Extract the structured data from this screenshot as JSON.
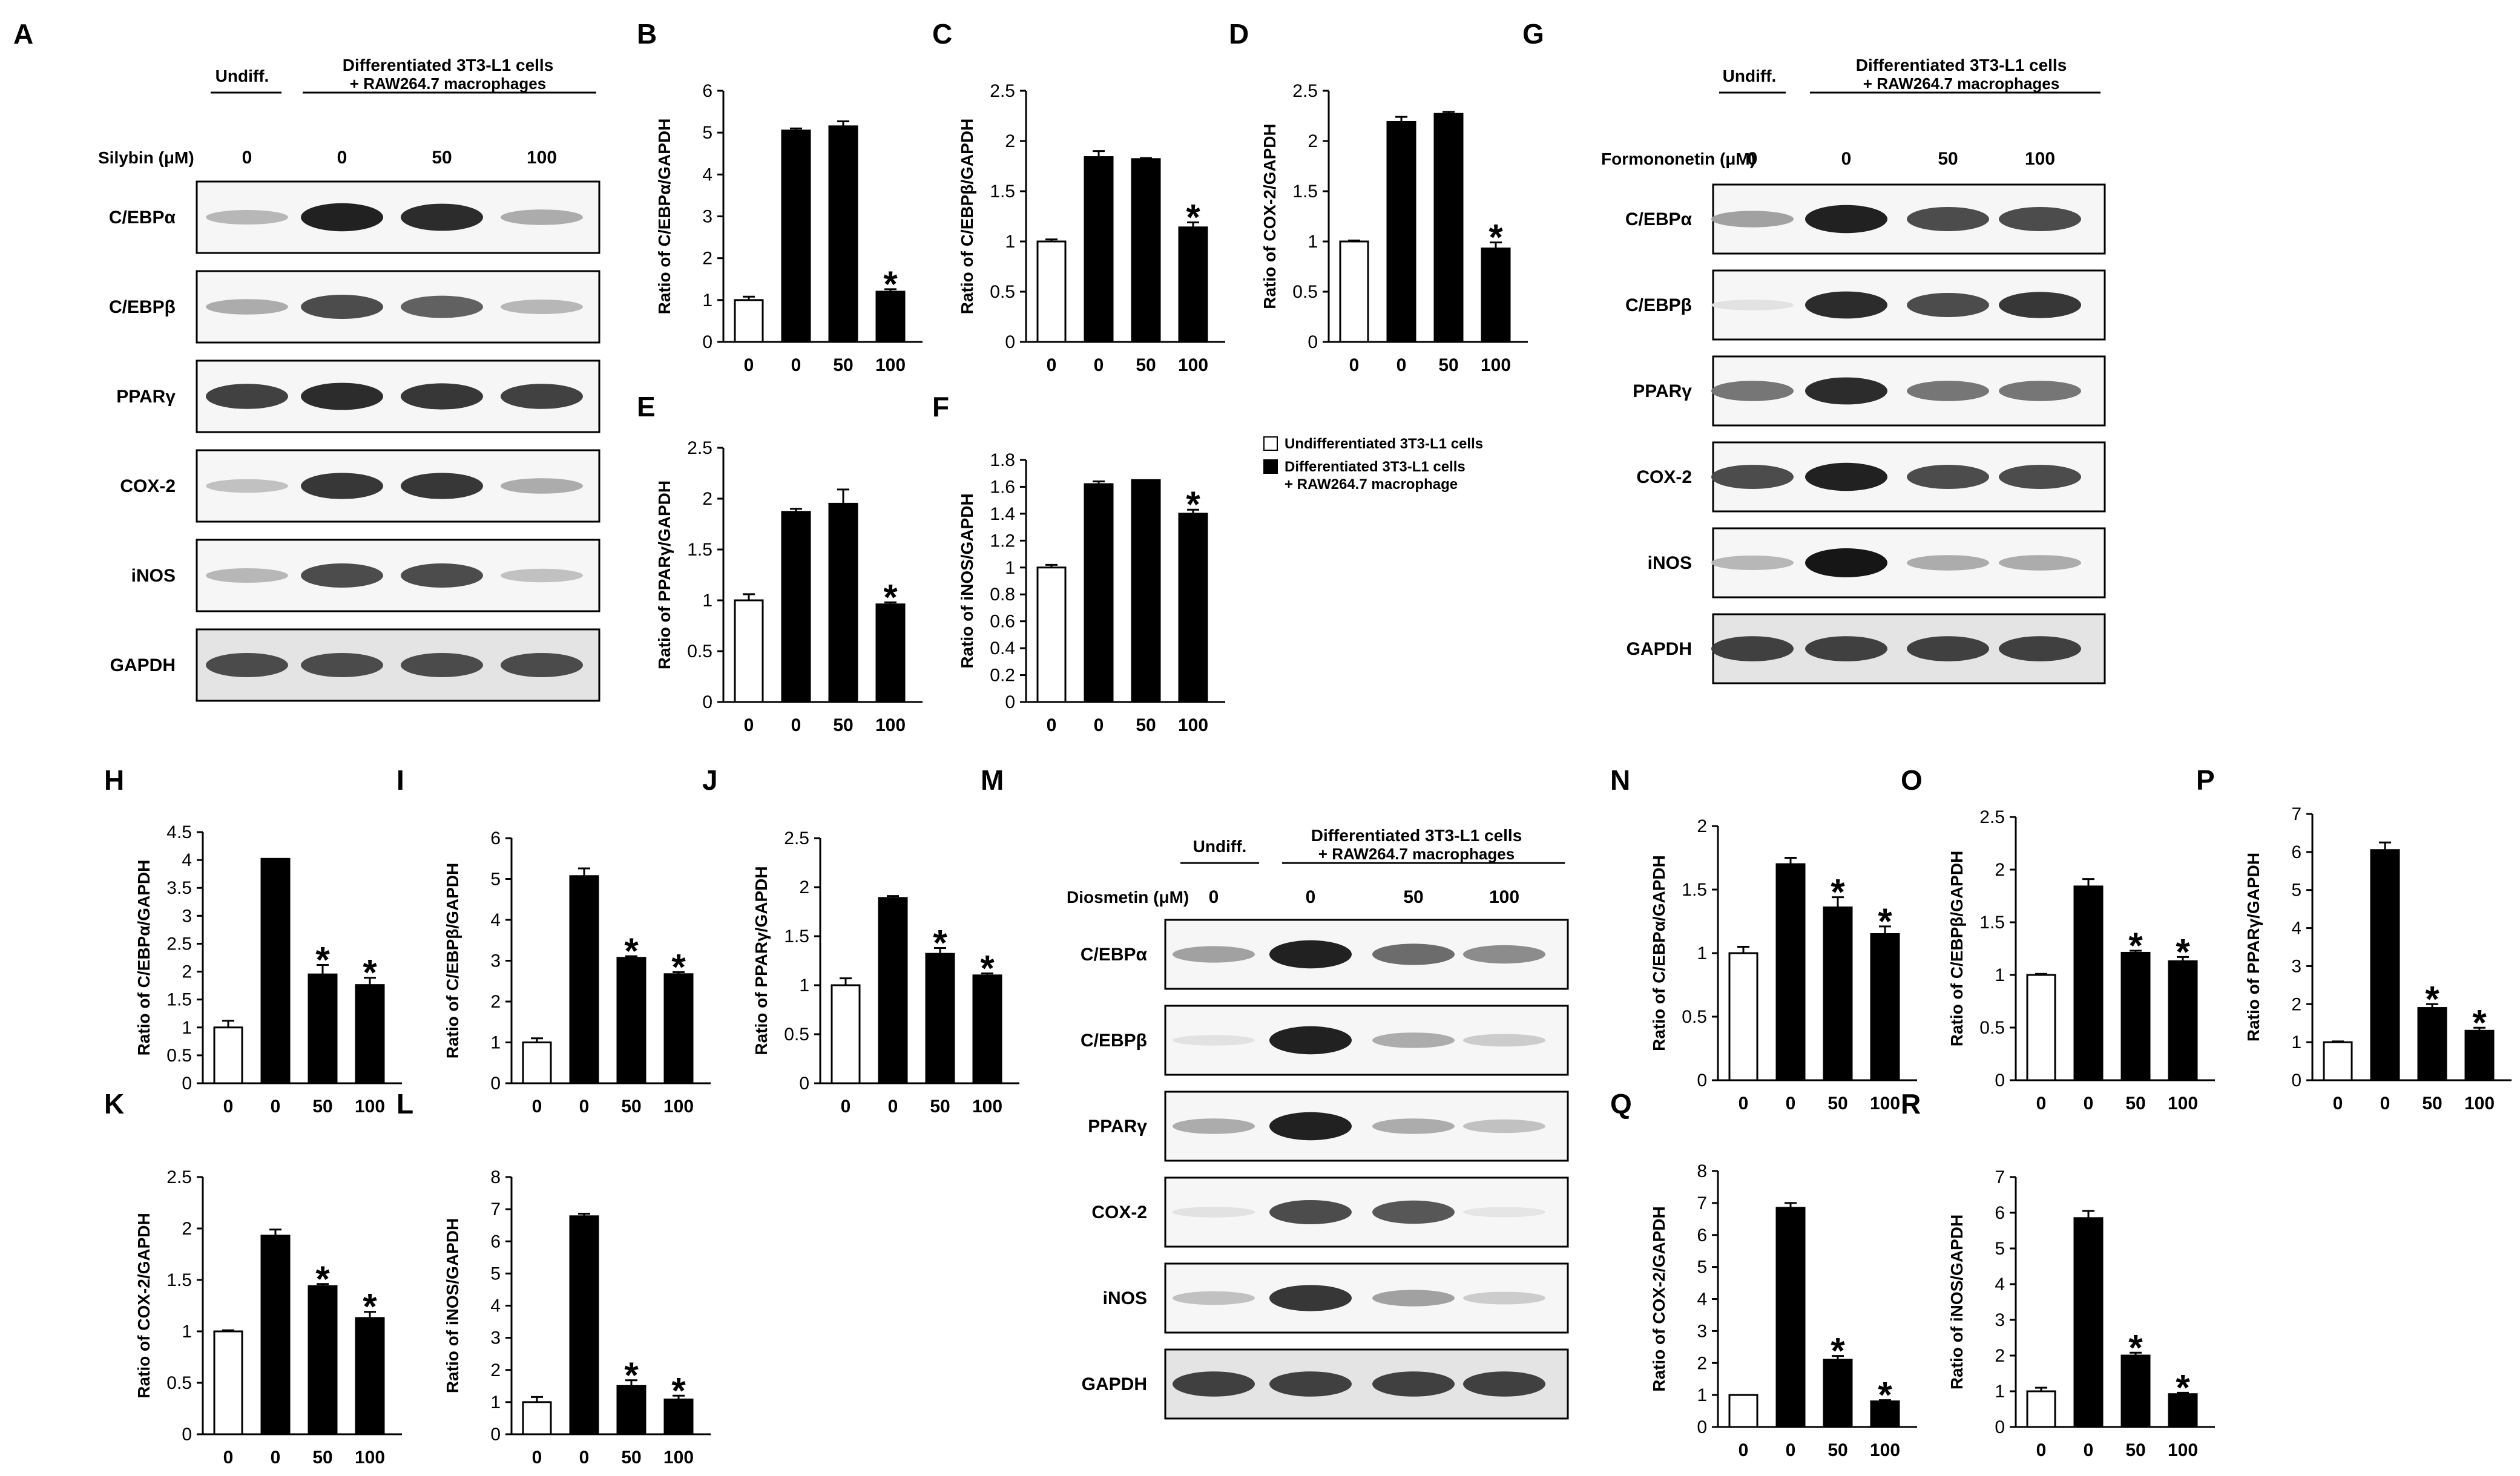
{
  "figure": {
    "blot_header": {
      "undiff_label": "Undiff.",
      "diff_label_line1": "Differentiated 3T3-L1 cells",
      "diff_label_line2": "+ RAW264.7 macrophages"
    },
    "blots": [
      {
        "panel": "A",
        "treatment_label": "Silybin (μM)",
        "doses": [
          "0",
          "0",
          "50",
          "100"
        ],
        "proteins": [
          "C/EBPα",
          "C/EBPβ",
          "PPARγ",
          "COX-2",
          "iNOS",
          "GAPDH"
        ],
        "band_intensity": [
          [
            0.25,
            0.95,
            0.9,
            0.3
          ],
          [
            0.3,
            0.75,
            0.65,
            0.25
          ],
          [
            0.8,
            0.9,
            0.85,
            0.8
          ],
          [
            0.2,
            0.85,
            0.85,
            0.3
          ],
          [
            0.25,
            0.75,
            0.75,
            0.2
          ],
          [
            0.75,
            0.75,
            0.75,
            0.75
          ]
        ]
      },
      {
        "panel": "G",
        "treatment_label": "Formononetin (μM)",
        "doses": [
          "0",
          "0",
          "50",
          "100"
        ],
        "proteins": [
          "C/EBPα",
          "C/EBPβ",
          "PPARγ",
          "COX-2",
          "iNOS",
          "GAPDH"
        ],
        "band_intensity": [
          [
            0.35,
            0.95,
            0.75,
            0.75
          ],
          [
            0.05,
            0.9,
            0.75,
            0.85
          ],
          [
            0.55,
            0.9,
            0.55,
            0.55
          ],
          [
            0.75,
            0.95,
            0.75,
            0.75
          ],
          [
            0.25,
            1.0,
            0.3,
            0.3
          ],
          [
            0.8,
            0.8,
            0.8,
            0.8
          ]
        ]
      },
      {
        "panel": "M",
        "treatment_label": "Diosmetin (μM)",
        "doses": [
          "0",
          "0",
          "50",
          "100"
        ],
        "proteins": [
          "C/EBPα",
          "C/EBPβ",
          "PPARγ",
          "COX-2",
          "iNOS",
          "GAPDH"
        ],
        "band_intensity": [
          [
            0.35,
            0.95,
            0.6,
            0.45
          ],
          [
            0.05,
            0.95,
            0.3,
            0.15
          ],
          [
            0.3,
            0.95,
            0.3,
            0.2
          ],
          [
            0.05,
            0.75,
            0.7,
            0.03
          ],
          [
            0.2,
            0.85,
            0.35,
            0.15
          ],
          [
            0.8,
            0.8,
            0.8,
            0.8
          ]
        ]
      }
    ],
    "legend": {
      "undiff": "Undifferentiated  3T3-L1 cells",
      "diff_line1": "Differentiated  3T3-L1 cells",
      "diff_line2": "+ RAW264.7 macrophage"
    },
    "colors": {
      "undiff_bar": "#ffffff",
      "diff_bar": "#000000",
      "axis": "#000000"
    }
  },
  "chart_data": [
    {
      "panel": "B",
      "type": "bar",
      "ylabel": "Ratio of C/EBPα/GAPDH",
      "categories": [
        "0",
        "0",
        "50",
        "100"
      ],
      "values": [
        1.0,
        5.05,
        5.15,
        1.2
      ],
      "errors": [
        0.08,
        0.05,
        0.12,
        0.06
      ],
      "significant": [
        false,
        false,
        false,
        true
      ],
      "ylim": [
        0,
        6
      ],
      "yticks": [
        "0",
        "1",
        "2",
        "3",
        "4",
        "5",
        "6"
      ]
    },
    {
      "panel": "C",
      "type": "bar",
      "ylabel": "Ratio of C/EBPβ/GAPDH",
      "categories": [
        "0",
        "0",
        "50",
        "100"
      ],
      "values": [
        1.0,
        1.84,
        1.82,
        1.14
      ],
      "errors": [
        0.02,
        0.06,
        0.01,
        0.05
      ],
      "significant": [
        false,
        false,
        false,
        true
      ],
      "ylim": [
        0,
        2.5
      ],
      "yticks": [
        "0",
        "0.5",
        "1",
        "1.5",
        "2",
        "2.5"
      ]
    },
    {
      "panel": "D",
      "type": "bar",
      "ylabel": "Ratio of COX-2/GAPDH",
      "categories": [
        "0",
        "0",
        "50",
        "100"
      ],
      "values": [
        1.0,
        2.19,
        2.27,
        0.93
      ],
      "errors": [
        0.01,
        0.05,
        0.02,
        0.06
      ],
      "significant": [
        false,
        false,
        false,
        true
      ],
      "ylim": [
        0,
        2.5
      ],
      "yticks": [
        "0",
        "0.5",
        "1",
        "1.5",
        "2",
        "2.5"
      ]
    },
    {
      "panel": "E",
      "type": "bar",
      "ylabel": "Ratio of PPARγ/GAPDH",
      "categories": [
        "0",
        "0",
        "50",
        "100"
      ],
      "values": [
        1.0,
        1.87,
        1.95,
        0.96
      ],
      "errors": [
        0.06,
        0.03,
        0.14,
        0.02
      ],
      "significant": [
        false,
        false,
        false,
        true
      ],
      "ylim": [
        0,
        2.5
      ],
      "yticks": [
        "0",
        "0.5",
        "1",
        "1.5",
        "2",
        "2.5"
      ]
    },
    {
      "panel": "F",
      "type": "bar",
      "ylabel": "Ratio of iNOS/GAPDH",
      "categories": [
        "0",
        "0",
        "50",
        "100"
      ],
      "values": [
        1.0,
        1.62,
        1.65,
        1.4
      ],
      "errors": [
        0.02,
        0.02,
        0.0,
        0.03
      ],
      "significant": [
        false,
        false,
        false,
        true
      ],
      "ylim": [
        0,
        1.8
      ],
      "yticks": [
        "0",
        "0.2",
        "0.4",
        "0.6",
        "0.8",
        "1",
        "1.2",
        "1.4",
        "1.6",
        "1.8"
      ]
    },
    {
      "panel": "H",
      "type": "bar",
      "ylabel": "Ratio of C/EBPα/GAPDH",
      "categories": [
        "0",
        "0",
        "50",
        "100"
      ],
      "values": [
        1.0,
        4.02,
        1.95,
        1.76
      ],
      "errors": [
        0.12,
        0.0,
        0.17,
        0.13
      ],
      "significant": [
        false,
        false,
        true,
        true
      ],
      "ylim": [
        0,
        4.5
      ],
      "yticks": [
        "0",
        "0.5",
        "1",
        "1.5",
        "2",
        "2.5",
        "3",
        "3.5",
        "4",
        "4.5"
      ]
    },
    {
      "panel": "I",
      "type": "bar",
      "ylabel": "Ratio of C/EBPβ/GAPDH",
      "categories": [
        "0",
        "0",
        "50",
        "100"
      ],
      "values": [
        1.0,
        5.07,
        3.07,
        2.67
      ],
      "errors": [
        0.1,
        0.19,
        0.04,
        0.05
      ],
      "significant": [
        false,
        false,
        true,
        true
      ],
      "ylim": [
        0,
        6
      ],
      "yticks": [
        "0",
        "1",
        "2",
        "3",
        "4",
        "5",
        "6"
      ]
    },
    {
      "panel": "J",
      "type": "bar",
      "ylabel": "Ratio of PPARγ/GAPDH",
      "categories": [
        "0",
        "0",
        "50",
        "100"
      ],
      "values": [
        1.0,
        1.89,
        1.32,
        1.1
      ],
      "errors": [
        0.07,
        0.02,
        0.06,
        0.02
      ],
      "significant": [
        false,
        false,
        true,
        true
      ],
      "ylim": [
        0,
        2.5
      ],
      "yticks": [
        "0",
        "0.5",
        "1",
        "1.5",
        "2",
        "2.5"
      ]
    },
    {
      "panel": "K",
      "type": "bar",
      "ylabel": "Ratio of COX-2/GAPDH",
      "categories": [
        "0",
        "0",
        "50",
        "100"
      ],
      "values": [
        1.0,
        1.93,
        1.44,
        1.13
      ],
      "errors": [
        0.01,
        0.06,
        0.02,
        0.06
      ],
      "significant": [
        false,
        false,
        true,
        true
      ],
      "ylim": [
        0,
        2.5
      ],
      "yticks": [
        "0",
        "0.5",
        "1",
        "1.5",
        "2",
        "2.5"
      ]
    },
    {
      "panel": "L",
      "type": "bar",
      "ylabel": "Ratio of iNOS/GAPDH",
      "categories": [
        "0",
        "0",
        "50",
        "100"
      ],
      "values": [
        1.0,
        6.78,
        1.5,
        1.08
      ],
      "errors": [
        0.16,
        0.08,
        0.18,
        0.12
      ],
      "significant": [
        false,
        false,
        true,
        true
      ],
      "ylim": [
        0,
        8
      ],
      "yticks": [
        "0",
        "1",
        "2",
        "3",
        "4",
        "5",
        "6",
        "7",
        "8"
      ]
    },
    {
      "panel": "N",
      "type": "bar",
      "ylabel": "Ratio of C/EBPα/GAPDH",
      "categories": [
        "0",
        "0",
        "50",
        "100"
      ],
      "values": [
        1.0,
        1.7,
        1.36,
        1.15
      ],
      "errors": [
        0.05,
        0.05,
        0.08,
        0.06
      ],
      "significant": [
        false,
        false,
        true,
        true
      ],
      "ylim": [
        0,
        2
      ],
      "yticks": [
        "0",
        "0.5",
        "1",
        "1.5",
        "2"
      ]
    },
    {
      "panel": "O",
      "type": "bar",
      "ylabel": "Ratio of C/EBPβ/GAPDH",
      "categories": [
        "0",
        "0",
        "50",
        "100"
      ],
      "values": [
        1.0,
        1.84,
        1.21,
        1.13
      ],
      "errors": [
        0.01,
        0.07,
        0.02,
        0.04
      ],
      "significant": [
        false,
        false,
        true,
        true
      ],
      "ylim": [
        0,
        2.5
      ],
      "yticks": [
        "0",
        "0.5",
        "1",
        "1.5",
        "2",
        "2.5"
      ]
    },
    {
      "panel": "P",
      "type": "bar",
      "ylabel": "Ratio of PPARγ/GAPDH",
      "categories": [
        "0",
        "0",
        "50",
        "100"
      ],
      "values": [
        1.0,
        6.05,
        1.9,
        1.3
      ],
      "errors": [
        0.02,
        0.2,
        0.1,
        0.08
      ],
      "significant": [
        false,
        false,
        true,
        true
      ],
      "ylim": [
        0,
        7
      ],
      "yticks": [
        "0",
        "1",
        "2",
        "3",
        "4",
        "5",
        "6",
        "7"
      ]
    },
    {
      "panel": "Q",
      "type": "bar",
      "ylabel": "Ratio of COX-2/GAPDH",
      "categories": [
        "0",
        "0",
        "50",
        "100"
      ],
      "values": [
        1.0,
        6.85,
        2.1,
        0.8
      ],
      "errors": [
        0.0,
        0.15,
        0.12,
        0.04
      ],
      "significant": [
        false,
        false,
        true,
        true
      ],
      "ylim": [
        0,
        8
      ],
      "yticks": [
        "0",
        "1",
        "2",
        "3",
        "4",
        "5",
        "6",
        "7",
        "8"
      ]
    },
    {
      "panel": "R",
      "type": "bar",
      "ylabel": "Ratio of iNOS/GAPDH",
      "categories": [
        "0",
        "0",
        "50",
        "100"
      ],
      "values": [
        1.0,
        5.85,
        2.0,
        0.92
      ],
      "errors": [
        0.1,
        0.2,
        0.08,
        0.04
      ],
      "significant": [
        false,
        false,
        true,
        true
      ],
      "ylim": [
        0,
        7
      ],
      "yticks": [
        "0",
        "1",
        "2",
        "3",
        "4",
        "5",
        "6",
        "7"
      ]
    }
  ]
}
